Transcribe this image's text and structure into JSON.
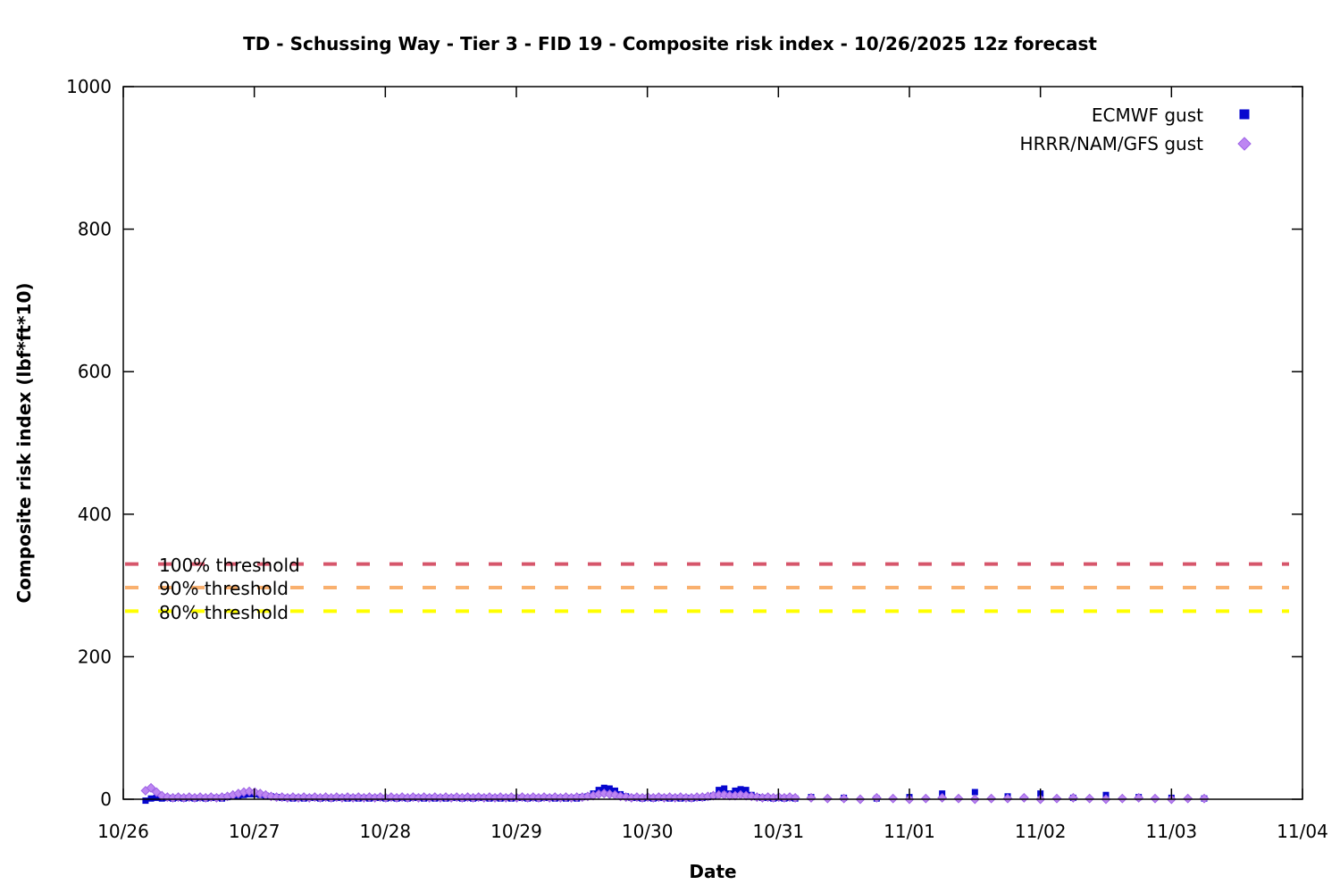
{
  "chart_data": {
    "type": "scatter",
    "title": "TD - Schussing Way - Tier 3 - FID 19 - Composite risk index - 10/26/2025 12z forecast",
    "xlabel": "Date",
    "ylabel": "Composite risk index (lbf*ft*10)",
    "x_tick_labels": [
      "10/26",
      "10/27",
      "10/28",
      "10/29",
      "10/30",
      "10/31",
      "11/01",
      "11/02",
      "11/03",
      "11/04"
    ],
    "y_ticks": [
      0,
      200,
      400,
      600,
      800,
      1000
    ],
    "ylim": [
      0,
      1000
    ],
    "x_range_days": [
      0,
      9
    ],
    "grid": false,
    "legend_position": "top-right",
    "thresholds": [
      {
        "label": "100% threshold",
        "value": 330,
        "color": "#d6566b"
      },
      {
        "label": "90% threshold",
        "value": 297,
        "color": "#f9b06e"
      },
      {
        "label": "80% threshold",
        "value": 264,
        "color": "#ffff00"
      }
    ],
    "series": [
      {
        "name": "ECMWF gust",
        "marker": "square",
        "color": "#0606cf",
        "points_dense": {
          "x_start_day": 0.17,
          "x_step_day": 0.0416667,
          "y": [
            -2,
            1,
            2,
            1,
            2,
            1,
            2,
            1,
            2,
            1,
            2,
            1,
            2,
            2,
            1,
            3,
            4,
            5,
            6,
            7,
            7,
            6,
            5,
            4,
            3,
            2,
            2,
            1,
            2,
            1,
            2,
            2,
            1,
            2,
            1,
            2,
            2,
            1,
            2,
            1,
            2,
            1,
            2,
            2,
            1,
            2,
            1,
            2,
            1,
            2,
            2,
            1,
            2,
            1,
            2,
            1,
            2,
            2,
            1,
            2,
            1,
            2,
            2,
            1,
            2,
            1,
            2,
            1,
            2,
            2,
            1,
            2,
            1,
            2,
            2,
            1,
            2,
            1,
            2,
            1,
            3,
            4,
            8,
            13,
            16,
            15,
            12,
            7,
            4,
            2,
            2,
            1,
            2,
            1,
            2,
            2,
            1,
            2,
            1,
            2,
            1,
            2,
            2,
            3,
            5,
            13,
            15,
            8,
            12,
            14,
            13,
            6,
            3,
            2,
            2,
            1,
            2,
            1,
            2,
            1
          ]
        },
        "points_sparse": {
          "x_start_day": 5.25,
          "x_step_day": 0.25,
          "y": [
            3,
            2,
            1,
            3,
            8,
            10,
            4,
            8,
            2,
            6,
            3,
            2,
            1
          ]
        }
      },
      {
        "name": "HRRR/NAM/GFS gust",
        "marker": "diamond",
        "color": "#bd86f2",
        "edge_color": "#9e63e6",
        "points_dense": {
          "x_start_day": 0.17,
          "x_step_day": 0.0416667,
          "y": [
            12,
            16,
            10,
            5,
            3,
            2,
            3,
            2,
            3,
            2,
            3,
            2,
            3,
            2,
            3,
            4,
            6,
            8,
            10,
            11,
            10,
            8,
            6,
            4,
            3,
            3,
            2,
            3,
            2,
            3,
            2,
            3,
            2,
            3,
            2,
            3,
            2,
            3,
            2,
            3,
            2,
            3,
            2,
            3,
            2,
            3,
            2,
            3,
            2,
            3,
            2,
            3,
            2,
            3,
            2,
            3,
            2,
            3,
            2,
            3,
            2,
            3,
            2,
            3,
            2,
            3,
            2,
            3,
            2,
            3,
            2,
            3,
            2,
            3,
            2,
            3,
            2,
            3,
            2,
            3,
            3,
            4,
            5,
            7,
            8,
            7,
            6,
            4,
            3,
            2,
            3,
            2,
            3,
            2,
            3,
            2,
            3,
            2,
            3,
            2,
            2,
            3,
            3,
            4,
            5,
            6,
            6,
            5,
            5,
            6,
            5,
            4,
            3,
            2,
            3,
            2,
            3,
            2,
            3,
            2
          ]
        },
        "points_sparse": {
          "x_start_day": 5.25,
          "x_step_day": 0.125,
          "y": [
            2,
            1,
            1,
            0,
            2,
            1,
            0,
            1,
            2,
            1,
            0,
            1,
            1,
            2,
            0,
            1,
            2,
            1,
            0,
            1,
            2,
            1,
            0,
            1,
            1
          ]
        }
      }
    ]
  }
}
